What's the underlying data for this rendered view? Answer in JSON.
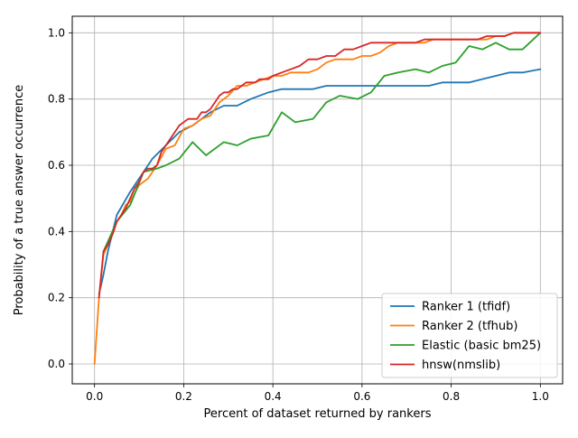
{
  "chart_data": {
    "type": "line",
    "title": "",
    "xlabel": "Percent of dataset returned by rankers",
    "ylabel": "Probability of a true answer occurrence",
    "xlim": [
      -0.05,
      1.05
    ],
    "ylim": [
      -0.06,
      1.05
    ],
    "xticks": [
      0.0,
      0.2,
      0.4,
      0.6,
      0.8,
      1.0
    ],
    "xtick_labels": [
      "0.0",
      "0.2",
      "0.4",
      "0.6",
      "0.8",
      "1.0"
    ],
    "yticks": [
      0.0,
      0.2,
      0.4,
      0.6,
      0.8,
      1.0
    ],
    "ytick_labels": [
      "0.0",
      "0.2",
      "0.4",
      "0.6",
      "0.8",
      "1.0"
    ],
    "grid": true,
    "legend_position": "lower-right",
    "series": [
      {
        "name": "Ranker 1 (tfidf)",
        "color": "#1f77b4",
        "x": [
          0.01,
          0.02,
          0.03,
          0.05,
          0.08,
          0.11,
          0.13,
          0.16,
          0.19,
          0.22,
          0.26,
          0.29,
          0.32,
          0.35,
          0.39,
          0.42,
          0.45,
          0.49,
          0.52,
          0.55,
          0.59,
          0.62,
          0.65,
          0.68,
          0.72,
          0.75,
          0.78,
          0.81,
          0.84,
          0.87,
          0.9,
          0.93,
          0.96,
          1.0
        ],
        "y": [
          0.21,
          0.27,
          0.34,
          0.45,
          0.52,
          0.58,
          0.62,
          0.66,
          0.7,
          0.72,
          0.76,
          0.78,
          0.78,
          0.8,
          0.82,
          0.83,
          0.83,
          0.83,
          0.84,
          0.84,
          0.84,
          0.84,
          0.84,
          0.84,
          0.84,
          0.84,
          0.85,
          0.85,
          0.85,
          0.86,
          0.87,
          0.88,
          0.88,
          0.89
        ]
      },
      {
        "name": "Ranker 2 (tfhub)",
        "color": "#ff7f0e",
        "x": [
          0.0,
          0.01,
          0.02,
          0.03,
          0.04,
          0.05,
          0.06,
          0.07,
          0.08,
          0.1,
          0.12,
          0.14,
          0.16,
          0.18,
          0.2,
          0.22,
          0.24,
          0.26,
          0.28,
          0.3,
          0.32,
          0.34,
          0.36,
          0.38,
          0.4,
          0.42,
          0.44,
          0.46,
          0.48,
          0.5,
          0.52,
          0.54,
          0.56,
          0.58,
          0.6,
          0.62,
          0.64,
          0.66,
          0.68,
          0.7,
          0.72,
          0.74,
          0.76,
          0.78,
          0.8,
          0.82,
          0.84,
          0.86,
          0.88,
          0.9,
          0.92,
          0.94,
          0.96,
          0.98,
          1.0
        ],
        "y": [
          0.0,
          0.2,
          0.33,
          0.36,
          0.39,
          0.43,
          0.45,
          0.48,
          0.49,
          0.54,
          0.56,
          0.6,
          0.65,
          0.66,
          0.71,
          0.72,
          0.74,
          0.75,
          0.79,
          0.81,
          0.84,
          0.84,
          0.85,
          0.86,
          0.87,
          0.87,
          0.88,
          0.88,
          0.88,
          0.89,
          0.91,
          0.92,
          0.92,
          0.92,
          0.93,
          0.93,
          0.94,
          0.96,
          0.97,
          0.97,
          0.97,
          0.97,
          0.98,
          0.98,
          0.98,
          0.98,
          0.98,
          0.98,
          0.98,
          0.99,
          0.99,
          1.0,
          1.0,
          1.0,
          1.0
        ]
      },
      {
        "name": "Elastic (basic bm25)",
        "color": "#2ca02c",
        "x": [
          0.02,
          0.05,
          0.08,
          0.11,
          0.14,
          0.16,
          0.19,
          0.22,
          0.25,
          0.29,
          0.32,
          0.35,
          0.39,
          0.42,
          0.45,
          0.49,
          0.52,
          0.55,
          0.59,
          0.62,
          0.65,
          0.68,
          0.72,
          0.75,
          0.78,
          0.81,
          0.84,
          0.87,
          0.9,
          0.93,
          0.96,
          1.0
        ],
        "y": [
          0.34,
          0.43,
          0.48,
          0.58,
          0.59,
          0.6,
          0.62,
          0.67,
          0.63,
          0.67,
          0.66,
          0.68,
          0.69,
          0.76,
          0.73,
          0.74,
          0.79,
          0.81,
          0.8,
          0.82,
          0.87,
          0.88,
          0.89,
          0.88,
          0.9,
          0.91,
          0.96,
          0.95,
          0.97,
          0.95,
          0.95,
          1.0
        ]
      },
      {
        "name": "hnsw(nmslib)",
        "color": "#d62728",
        "x": [
          0.01,
          0.02,
          0.03,
          0.04,
          0.05,
          0.06,
          0.07,
          0.08,
          0.09,
          0.1,
          0.11,
          0.12,
          0.13,
          0.14,
          0.15,
          0.16,
          0.17,
          0.18,
          0.19,
          0.2,
          0.21,
          0.22,
          0.23,
          0.24,
          0.25,
          0.26,
          0.27,
          0.28,
          0.29,
          0.3,
          0.31,
          0.32,
          0.33,
          0.34,
          0.35,
          0.36,
          0.37,
          0.38,
          0.39,
          0.4,
          0.42,
          0.44,
          0.46,
          0.48,
          0.5,
          0.52,
          0.54,
          0.56,
          0.58,
          0.6,
          0.62,
          0.64,
          0.66,
          0.68,
          0.7,
          0.72,
          0.74,
          0.76,
          0.78,
          0.8,
          0.82,
          0.84,
          0.86,
          0.88,
          0.9,
          0.92,
          0.94,
          0.96,
          0.98,
          1.0
        ],
        "y": [
          0.2,
          0.34,
          0.36,
          0.39,
          0.43,
          0.45,
          0.47,
          0.5,
          0.53,
          0.55,
          0.58,
          0.59,
          0.59,
          0.6,
          0.64,
          0.66,
          0.68,
          0.7,
          0.72,
          0.73,
          0.74,
          0.74,
          0.74,
          0.76,
          0.76,
          0.77,
          0.79,
          0.81,
          0.82,
          0.82,
          0.83,
          0.83,
          0.84,
          0.85,
          0.85,
          0.85,
          0.86,
          0.86,
          0.86,
          0.87,
          0.88,
          0.89,
          0.9,
          0.92,
          0.92,
          0.93,
          0.93,
          0.95,
          0.95,
          0.96,
          0.97,
          0.97,
          0.97,
          0.97,
          0.97,
          0.97,
          0.98,
          0.98,
          0.98,
          0.98,
          0.98,
          0.98,
          0.98,
          0.99,
          0.99,
          0.99,
          1.0,
          1.0,
          1.0,
          1.0
        ]
      }
    ]
  }
}
